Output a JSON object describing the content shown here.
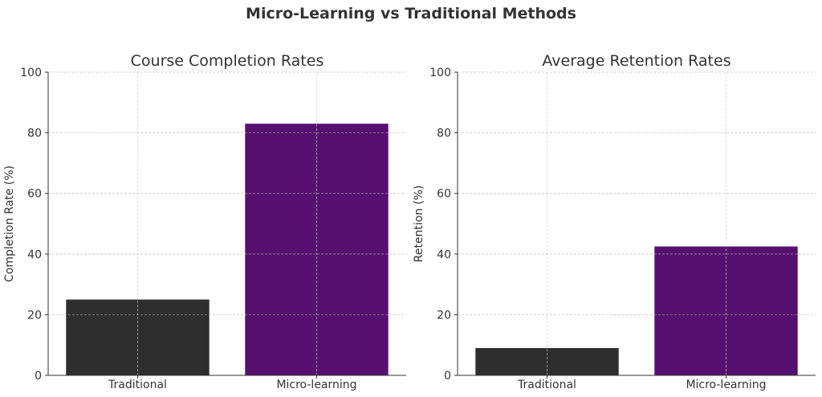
{
  "suptitle": "Micro-Learning vs Traditional Methods",
  "chart_data": [
    {
      "type": "bar",
      "title": "Course Completion Rates",
      "xlabel": "",
      "ylabel": "Completion Rate (%)",
      "categories": [
        "Traditional",
        "Micro-learning"
      ],
      "values": [
        25,
        83
      ],
      "colors": [
        "#2e2e2e",
        "#561070"
      ],
      "ylim": [
        0,
        100
      ],
      "yticks": [
        0,
        20,
        40,
        60,
        80,
        100
      ],
      "grid": true
    },
    {
      "type": "bar",
      "title": "Average Retention Rates",
      "xlabel": "",
      "ylabel": "Retention (%)",
      "categories": [
        "Traditional",
        "Micro-learning"
      ],
      "values": [
        9,
        42.5
      ],
      "colors": [
        "#2e2e2e",
        "#561070"
      ],
      "ylim": [
        0,
        100
      ],
      "yticks": [
        0,
        20,
        40,
        60,
        80,
        100
      ],
      "grid": true
    }
  ]
}
